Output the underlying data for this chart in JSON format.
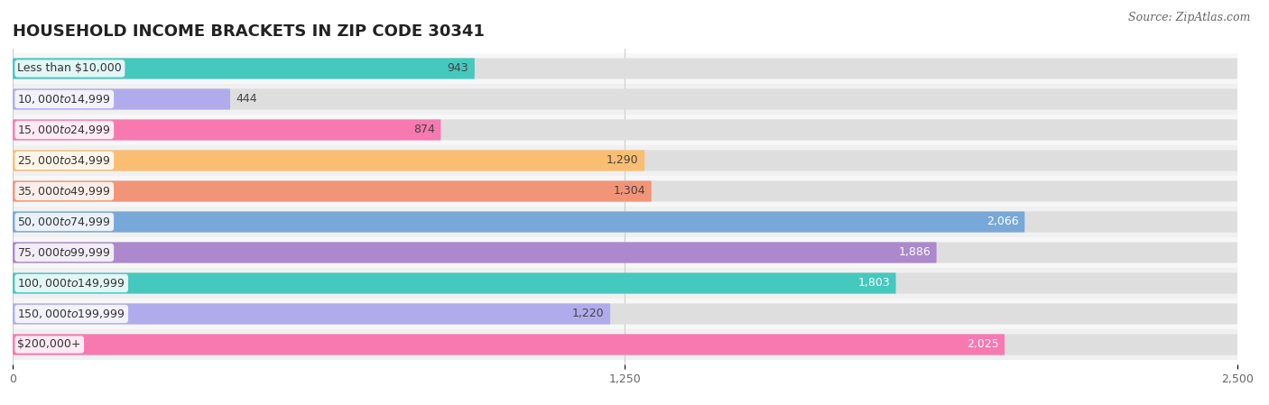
{
  "title": "HOUSEHOLD INCOME BRACKETS IN ZIP CODE 30341",
  "source": "Source: ZipAtlas.com",
  "categories": [
    "Less than $10,000",
    "$10,000 to $14,999",
    "$15,000 to $24,999",
    "$25,000 to $34,999",
    "$35,000 to $49,999",
    "$50,000 to $74,999",
    "$75,000 to $99,999",
    "$100,000 to $149,999",
    "$150,000 to $199,999",
    "$200,000+"
  ],
  "values": [
    943,
    444,
    874,
    1290,
    1304,
    2066,
    1886,
    1803,
    1220,
    2025
  ],
  "bar_colors": [
    "#45C8BE",
    "#B0ACEC",
    "#F878B0",
    "#F9BE72",
    "#F29478",
    "#78A8D8",
    "#AC88CC",
    "#45C8BE",
    "#B0ACEC",
    "#F878B0"
  ],
  "value_colors": [
    "#444444",
    "#444444",
    "#444444",
    "#444444",
    "#444444",
    "#ffffff",
    "#ffffff",
    "#ffffff",
    "#444444",
    "#ffffff"
  ],
  "xlim": [
    0,
    2500
  ],
  "xticks": [
    0,
    1250,
    2500
  ],
  "xtick_labels": [
    "0",
    "1,250",
    "2,500"
  ],
  "background_color": "#ffffff",
  "bar_bg_color": "#e8e8e8",
  "title_fontsize": 13,
  "label_fontsize": 9,
  "value_fontsize": 9,
  "source_fontsize": 9
}
